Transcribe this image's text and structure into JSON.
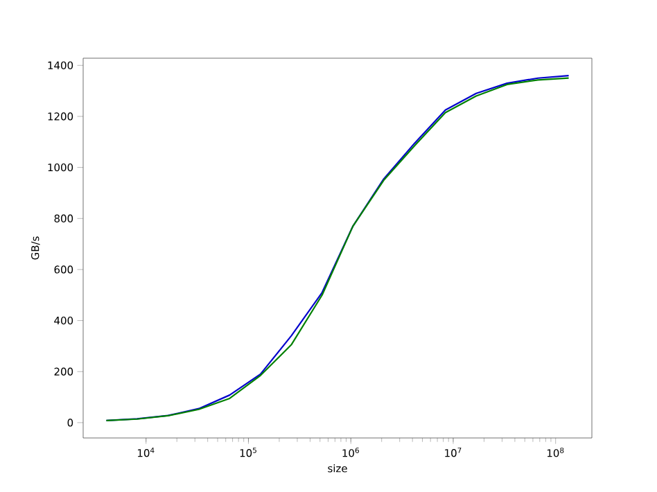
{
  "chart_data": {
    "type": "line",
    "xlabel": "size",
    "ylabel": "GB/s",
    "log": "x",
    "grid": false,
    "marker": "none",
    "line_style": "solid",
    "x": [
      4096,
      8192,
      16384,
      32768,
      65536,
      131072,
      262144,
      524288,
      1048576,
      2097152,
      4194304,
      8388608,
      16777216,
      33554432,
      67108864,
      134217728
    ],
    "series": [
      {
        "color": "#0000cc",
        "values": [
          8,
          15,
          28,
          55,
          108,
          190,
          340,
          510,
          770,
          955,
          1095,
          1225,
          1290,
          1330,
          1350,
          1360
        ]
      },
      {
        "color": "#008000",
        "values": [
          8,
          14,
          27,
          52,
          95,
          185,
          305,
          500,
          770,
          950,
          1085,
          1215,
          1280,
          1325,
          1343,
          1350
        ]
      }
    ],
    "xlim": [
      2432,
      226000000
    ],
    "ylim": [
      -60,
      1428
    ],
    "xticks": [
      {
        "value": 10000,
        "label": "10$^{4}$"
      },
      {
        "value": 100000,
        "label": "10$^{5}$"
      },
      {
        "value": 1000000,
        "label": "10$^{6}$"
      },
      {
        "value": 10000000,
        "label": "10$^{7}$"
      },
      {
        "value": 100000000,
        "label": "10$^{8}$"
      }
    ],
    "yticks": [
      0,
      200,
      400,
      600,
      800,
      1000,
      1200,
      1400
    ]
  }
}
